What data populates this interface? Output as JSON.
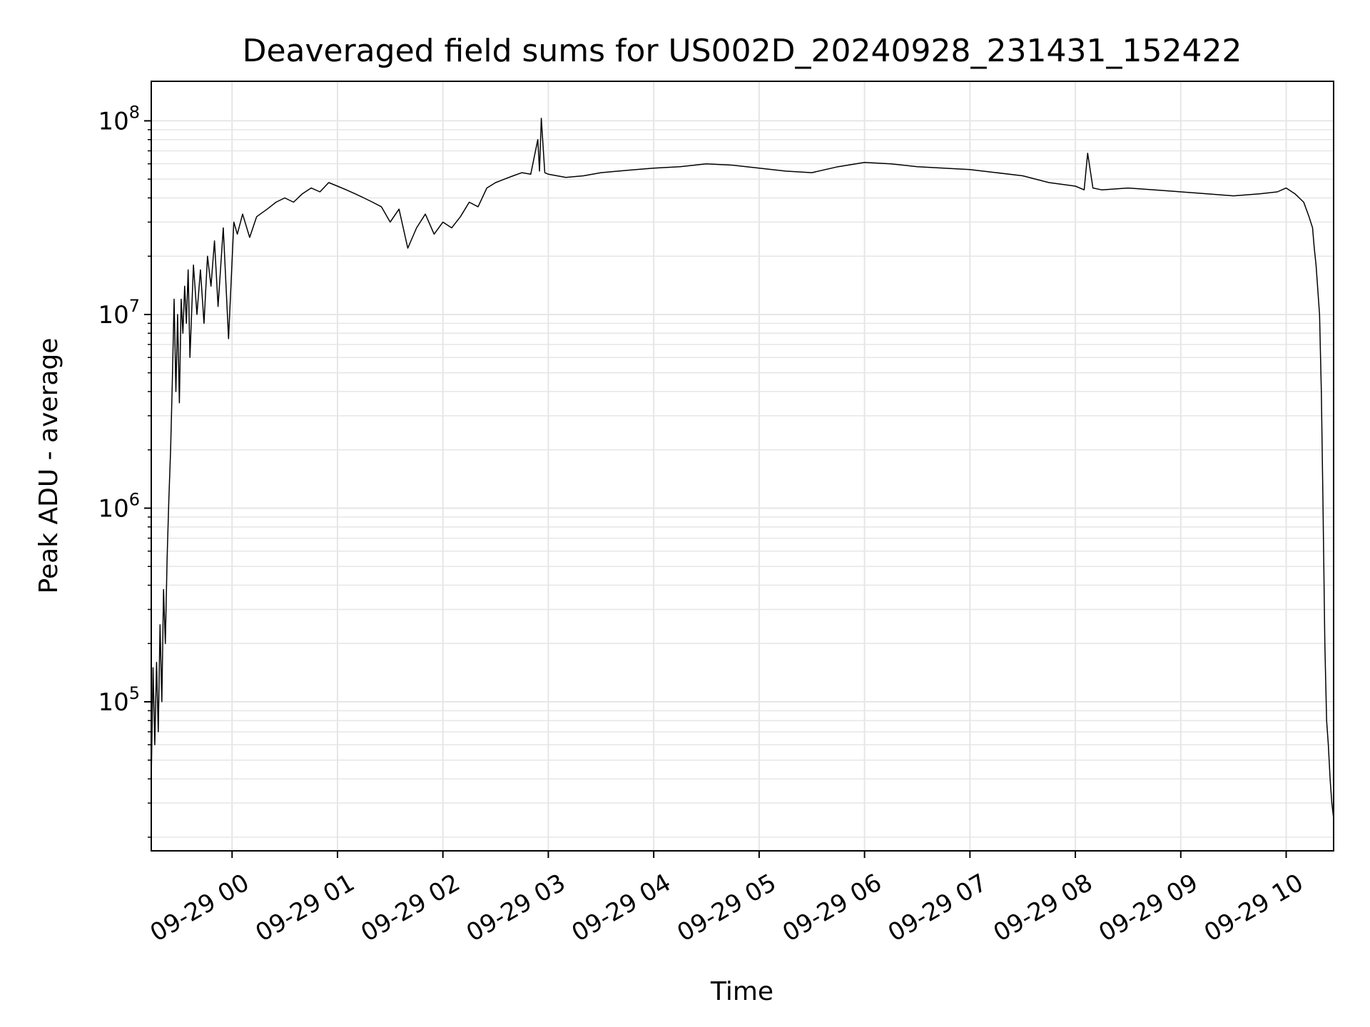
{
  "chart_data": {
    "type": "line",
    "title": "Deaveraged field sums for US002D_20240928_231431_152422",
    "xlabel": "Time",
    "ylabel": "Peak ADU - average",
    "yscale": "log",
    "ylim": [
      17000,
      160000000
    ],
    "xlim": [
      "2024-09-28 23:14",
      "2024-09-29 10:27"
    ],
    "grid": true,
    "line_color": "#000000",
    "grid_color": "#e6e6e6",
    "y_ticks": [
      {
        "value": 100000,
        "base": "10",
        "exp": "5"
      },
      {
        "value": 1000000,
        "base": "10",
        "exp": "6"
      },
      {
        "value": 10000000,
        "base": "10",
        "exp": "7"
      },
      {
        "value": 100000000,
        "base": "10",
        "exp": "8"
      }
    ],
    "x_ticks": [
      {
        "t": "2024-09-29 00:00",
        "label": "09-29 00"
      },
      {
        "t": "2024-09-29 01:00",
        "label": "09-29 01"
      },
      {
        "t": "2024-09-29 02:00",
        "label": "09-29 02"
      },
      {
        "t": "2024-09-29 03:00",
        "label": "09-29 03"
      },
      {
        "t": "2024-09-29 04:00",
        "label": "09-29 04"
      },
      {
        "t": "2024-09-29 05:00",
        "label": "09-29 05"
      },
      {
        "t": "2024-09-29 06:00",
        "label": "09-29 06"
      },
      {
        "t": "2024-09-29 07:00",
        "label": "09-29 07"
      },
      {
        "t": "2024-09-29 08:00",
        "label": "09-29 08"
      },
      {
        "t": "2024-09-29 09:00",
        "label": "09-29 09"
      },
      {
        "t": "2024-09-29 10:00",
        "label": "09-29 10"
      }
    ],
    "series": [
      {
        "x": [
          "2024-09-28 23:14",
          "2024-09-28 23:15",
          "2024-09-28 23:16",
          "2024-09-28 23:17",
          "2024-09-28 23:18",
          "2024-09-28 23:19",
          "2024-09-28 23:20",
          "2024-09-28 23:21",
          "2024-09-28 23:22",
          "2024-09-28 23:23",
          "2024-09-28 23:24",
          "2024-09-28 23:25",
          "2024-09-28 23:26",
          "2024-09-28 23:27",
          "2024-09-28 23:28",
          "2024-09-28 23:29",
          "2024-09-28 23:30",
          "2024-09-28 23:31",
          "2024-09-28 23:32",
          "2024-09-28 23:33",
          "2024-09-28 23:34",
          "2024-09-28 23:35",
          "2024-09-28 23:36",
          "2024-09-28 23:38",
          "2024-09-28 23:40",
          "2024-09-28 23:42",
          "2024-09-28 23:44",
          "2024-09-28 23:46",
          "2024-09-28 23:48",
          "2024-09-28 23:50",
          "2024-09-28 23:52",
          "2024-09-28 23:55",
          "2024-09-28 23:58",
          "2024-09-29 00:01",
          "2024-09-29 00:03",
          "2024-09-29 00:06",
          "2024-09-29 00:10",
          "2024-09-29 00:14",
          "2024-09-29 00:20",
          "2024-09-29 00:25",
          "2024-09-29 00:30",
          "2024-09-29 00:35",
          "2024-09-29 00:40",
          "2024-09-29 00:45",
          "2024-09-29 00:50",
          "2024-09-29 00:55",
          "2024-09-29 01:00",
          "2024-09-29 01:05",
          "2024-09-29 01:10",
          "2024-09-29 01:15",
          "2024-09-29 01:20",
          "2024-09-29 01:25",
          "2024-09-29 01:30",
          "2024-09-29 01:35",
          "2024-09-29 01:40",
          "2024-09-29 01:45",
          "2024-09-29 01:50",
          "2024-09-29 01:55",
          "2024-09-29 02:00",
          "2024-09-29 02:05",
          "2024-09-29 02:10",
          "2024-09-29 02:15",
          "2024-09-29 02:20",
          "2024-09-29 02:25",
          "2024-09-29 02:30",
          "2024-09-29 02:35",
          "2024-09-29 02:40",
          "2024-09-29 02:45",
          "2024-09-29 02:50",
          "2024-09-29 02:54",
          "2024-09-29 02:55",
          "2024-09-29 02:56",
          "2024-09-29 02:58",
          "2024-09-29 03:00",
          "2024-09-29 03:10",
          "2024-09-29 03:20",
          "2024-09-29 03:30",
          "2024-09-29 03:40",
          "2024-09-29 03:50",
          "2024-09-29 04:00",
          "2024-09-29 04:15",
          "2024-09-29 04:30",
          "2024-09-29 04:45",
          "2024-09-29 05:00",
          "2024-09-29 05:15",
          "2024-09-29 05:30",
          "2024-09-29 05:45",
          "2024-09-29 06:00",
          "2024-09-29 06:15",
          "2024-09-29 06:30",
          "2024-09-29 06:45",
          "2024-09-29 07:00",
          "2024-09-29 07:15",
          "2024-09-29 07:30",
          "2024-09-29 07:45",
          "2024-09-29 08:00",
          "2024-09-29 08:05",
          "2024-09-29 08:07",
          "2024-09-29 08:10",
          "2024-09-29 08:15",
          "2024-09-29 08:30",
          "2024-09-29 08:45",
          "2024-09-29 09:00",
          "2024-09-29 09:15",
          "2024-09-29 09:30",
          "2024-09-29 09:45",
          "2024-09-29 09:55",
          "2024-09-29 10:00",
          "2024-09-29 10:05",
          "2024-09-29 10:10",
          "2024-09-29 10:13",
          "2024-09-29 10:15",
          "2024-09-29 10:16",
          "2024-09-29 10:17",
          "2024-09-29 10:19",
          "2024-09-29 10:20",
          "2024-09-29 10:21",
          "2024-09-29 10:22",
          "2024-09-29 10:23",
          "2024-09-29 10:24",
          "2024-09-29 10:25",
          "2024-09-29 10:26",
          "2024-09-29 10:27"
        ],
        "y": [
          40000,
          150000,
          60000,
          160000,
          70000,
          250000,
          100000,
          380000,
          200000,
          550000,
          1100000,
          2000000,
          4500000,
          12000000,
          4000000,
          10000000,
          3500000,
          12000000,
          8000000,
          14000000,
          9000000,
          17000000,
          6000000,
          18000000,
          10000000,
          17000000,
          9000000,
          20000000,
          14000000,
          24000000,
          11000000,
          28000000,
          7500000,
          30000000,
          26000000,
          33000000,
          25000000,
          32000000,
          35000000,
          38000000,
          40000000,
          38000000,
          42000000,
          45000000,
          43000000,
          48000000,
          46000000,
          44000000,
          42000000,
          40000000,
          38000000,
          36000000,
          30000000,
          35000000,
          22000000,
          28000000,
          33000000,
          26000000,
          30000000,
          28000000,
          32000000,
          38000000,
          36000000,
          45000000,
          48000000,
          50000000,
          52000000,
          54000000,
          53000000,
          80000000,
          55000000,
          103000000,
          54000000,
          53000000,
          51000000,
          52000000,
          54000000,
          55000000,
          56000000,
          57000000,
          58000000,
          60000000,
          59000000,
          57000000,
          55000000,
          54000000,
          58000000,
          61000000,
          60000000,
          58000000,
          57000000,
          56000000,
          54000000,
          52000000,
          48000000,
          46000000,
          44000000,
          68000000,
          45000000,
          44000000,
          45000000,
          44000000,
          43000000,
          42000000,
          41000000,
          42000000,
          43000000,
          45000000,
          42000000,
          38000000,
          32000000,
          28000000,
          22000000,
          18000000,
          10000000,
          4000000,
          1000000,
          200000,
          80000,
          60000,
          40000,
          30000,
          25000
        ]
      }
    ]
  }
}
